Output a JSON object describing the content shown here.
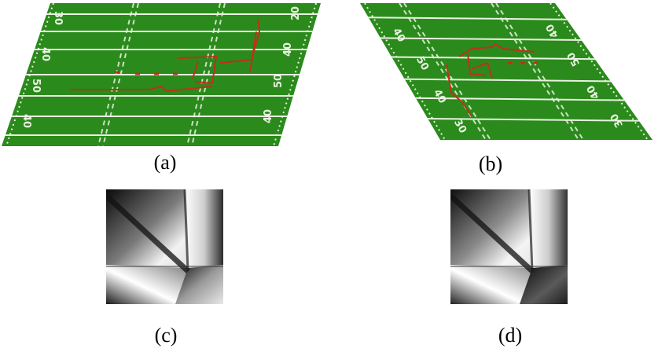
{
  "figure": {
    "panels": [
      {
        "id": "a",
        "caption": "(a)",
        "content": "perspective-football-field",
        "yard_numbers_top": [
          "30",
          "40",
          "50"
        ],
        "yard_numbers_bottom": [
          "20",
          "40",
          "50",
          "40"
        ]
      },
      {
        "id": "b",
        "caption": "(b)",
        "content": "perspective-football-field",
        "yard_numbers_top": [
          "40",
          "50",
          "40",
          "30"
        ],
        "yard_numbers_bottom": [
          "40",
          "50",
          "40",
          "30"
        ]
      },
      {
        "id": "c",
        "caption": "(c)",
        "content": "grayscale-similarity-map"
      },
      {
        "id": "d",
        "caption": "(d)",
        "content": "grayscale-similarity-map"
      }
    ],
    "colors": {
      "field_green": "#2b8a1c",
      "yard_line": "#e8f2e0",
      "play_line": "#c0301a"
    }
  }
}
